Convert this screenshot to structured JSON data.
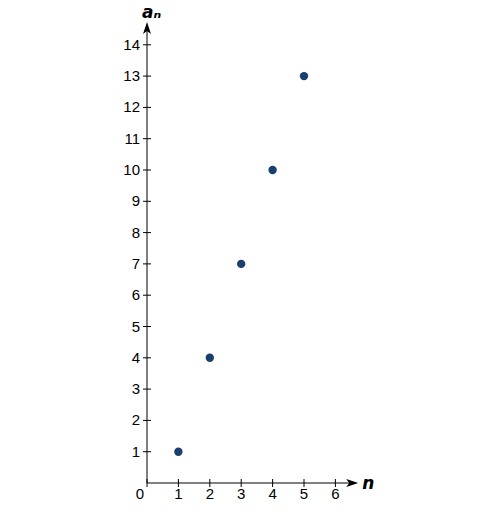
{
  "chart_data": {
    "type": "scatter",
    "xlabel": "n",
    "ylabel": "aₙ",
    "x": [
      1,
      2,
      3,
      4,
      5
    ],
    "values": [
      1,
      4,
      7,
      10,
      13
    ],
    "color": "#17406d",
    "marker": "circle",
    "xlim": [
      0,
      6.6
    ],
    "ylim": [
      0,
      14.6
    ],
    "xticks": [
      0,
      1,
      2,
      3,
      4,
      5,
      6
    ],
    "yticks": [
      1,
      2,
      3,
      4,
      5,
      6,
      7,
      8,
      9,
      10,
      11,
      12,
      13,
      14
    ],
    "grid": false
  }
}
